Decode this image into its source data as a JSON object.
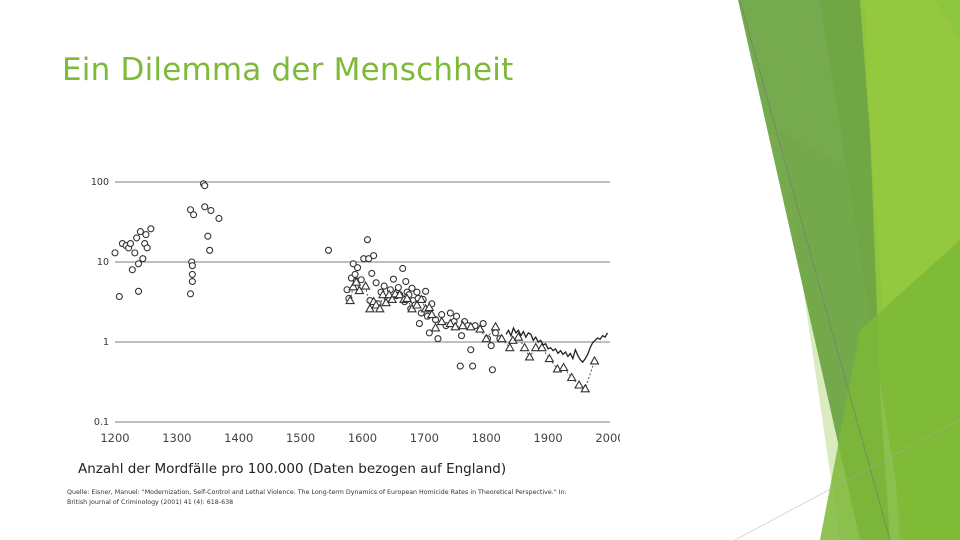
{
  "slide": {
    "title": "Ein Dilemma der Menschheit",
    "caption": "Anzahl der Mordfälle pro 100.000 (Daten bezogen auf England)",
    "source_line1": "Quelle: Eisner, Manuel: \"Modernization, Self-Control and Lethal Violence. The Long-term Dynamics of European Homicide Rates in Theoretical Perspective.\" In:",
    "source_line2": "British Journal of Criminology (2001) 41 (4): 618-638"
  },
  "colors": {
    "title": "#7dba3a",
    "gridline": "#999999",
    "marker": "#333333",
    "deco_dark": "#5c9a2c",
    "deco_mid": "#7bb43a",
    "deco_light": "#c9e3a4"
  },
  "chart_data": {
    "type": "scatter",
    "title": "",
    "xlabel": "",
    "ylabel": "",
    "yscale": "log",
    "xlim": [
      1200,
      2000
    ],
    "ylim": [
      0.1,
      100
    ],
    "x_ticks": [
      "1200",
      "1300",
      "1400",
      "1500",
      "1600",
      "1700",
      "1800",
      "1900",
      "2000"
    ],
    "y_ticks": [
      "100",
      "10",
      "1",
      "0.1"
    ],
    "grid": "horizontal",
    "series": [
      {
        "marker": "circle",
        "points": [
          [
            1200,
            13
          ],
          [
            1207,
            3.7
          ],
          [
            1212,
            17
          ],
          [
            1218,
            16
          ],
          [
            1222,
            15
          ],
          [
            1225,
            17
          ],
          [
            1228,
            8
          ],
          [
            1232,
            13
          ],
          [
            1235,
            20
          ],
          [
            1238,
            4.3
          ],
          [
            1238,
            9.5
          ],
          [
            1241,
            24
          ],
          [
            1245,
            11
          ],
          [
            1248,
            17
          ],
          [
            1250,
            22
          ],
          [
            1252,
            15
          ],
          [
            1258,
            26
          ],
          [
            1322,
            45
          ],
          [
            1322,
            4
          ],
          [
            1324,
            10
          ],
          [
            1325,
            7
          ],
          [
            1325,
            5.7
          ],
          [
            1325,
            9
          ],
          [
            1327,
            39
          ],
          [
            1343,
            95
          ],
          [
            1345,
            90
          ],
          [
            1345,
            49
          ],
          [
            1350,
            21
          ],
          [
            1353,
            14
          ],
          [
            1355,
            44
          ],
          [
            1368,
            35
          ],
          [
            1545,
            14
          ],
          [
            1575,
            4.5
          ],
          [
            1578,
            3.5
          ],
          [
            1582,
            6.3
          ],
          [
            1585,
            9.5
          ],
          [
            1588,
            7
          ],
          [
            1590,
            5.8
          ],
          [
            1592,
            8.5
          ],
          [
            1598,
            6
          ],
          [
            1602,
            11
          ],
          [
            1608,
            19
          ],
          [
            1610,
            11
          ],
          [
            1612,
            3.3
          ],
          [
            1615,
            7.2
          ],
          [
            1618,
            12
          ],
          [
            1622,
            5.5
          ],
          [
            1625,
            3
          ],
          [
            1630,
            4.2
          ],
          [
            1635,
            5
          ],
          [
            1640,
            3.5
          ],
          [
            1645,
            4.5
          ],
          [
            1650,
            6.1
          ],
          [
            1655,
            3.8
          ],
          [
            1658,
            4.8
          ],
          [
            1660,
            3.9
          ],
          [
            1665,
            8.3
          ],
          [
            1668,
            3.2
          ],
          [
            1670,
            5.7
          ],
          [
            1672,
            4.2
          ],
          [
            1675,
            3.9
          ],
          [
            1678,
            2.6
          ],
          [
            1680,
            4.7
          ],
          [
            1682,
            3.3
          ],
          [
            1685,
            2.9
          ],
          [
            1688,
            4.2
          ],
          [
            1690,
            3.5
          ],
          [
            1692,
            1.7
          ],
          [
            1695,
            2.3
          ],
          [
            1698,
            3.4
          ],
          [
            1702,
            4.3
          ],
          [
            1705,
            2.1
          ],
          [
            1708,
            1.3
          ],
          [
            1712,
            3
          ],
          [
            1718,
            1.9
          ],
          [
            1722,
            1.1
          ],
          [
            1728,
            2.2
          ],
          [
            1735,
            1.6
          ],
          [
            1742,
            2.3
          ],
          [
            1748,
            1.8
          ],
          [
            1752,
            2.1
          ],
          [
            1758,
            0.5
          ],
          [
            1760,
            1.2
          ],
          [
            1765,
            1.8
          ],
          [
            1770,
            1.6
          ],
          [
            1775,
            0.8
          ],
          [
            1778,
            0.5
          ],
          [
            1782,
            1.6
          ],
          [
            1795,
            1.7
          ],
          [
            1802,
            1.1
          ],
          [
            1808,
            0.9
          ],
          [
            1810,
            0.45
          ],
          [
            1815,
            1.3
          ],
          [
            1822,
            1.1
          ]
        ]
      },
      {
        "marker": "triangle",
        "dashed": true,
        "points": [
          [
            1580,
            3.3
          ],
          [
            1585,
            4.9
          ],
          [
            1590,
            5.6
          ],
          [
            1595,
            4.4
          ],
          [
            1605,
            5
          ],
          [
            1612,
            2.6
          ],
          [
            1618,
            3.2
          ],
          [
            1622,
            2.9
          ],
          [
            1628,
            2.6
          ],
          [
            1633,
            3.9
          ],
          [
            1638,
            3.1
          ],
          [
            1643,
            3.9
          ],
          [
            1648,
            3.4
          ],
          [
            1653,
            4
          ],
          [
            1660,
            3.9
          ],
          [
            1667,
            3.4
          ],
          [
            1672,
            3.5
          ],
          [
            1680,
            2.6
          ],
          [
            1688,
            2.9
          ],
          [
            1695,
            3.4
          ],
          [
            1702,
            2.6
          ],
          [
            1708,
            2.7
          ],
          [
            1712,
            2.2
          ],
          [
            1718,
            1.5
          ],
          [
            1728,
            1.8
          ],
          [
            1742,
            1.7
          ],
          [
            1750,
            1.55
          ],
          [
            1762,
            1.6
          ],
          [
            1775,
            1.55
          ],
          [
            1790,
            1.45
          ],
          [
            1800,
            1.1
          ],
          [
            1815,
            1.55
          ],
          [
            1825,
            1.1
          ],
          [
            1838,
            0.85
          ],
          [
            1843,
            1.05
          ],
          [
            1852,
            1.15
          ],
          [
            1862,
            0.85
          ],
          [
            1870,
            0.65
          ],
          [
            1880,
            0.85
          ],
          [
            1890,
            0.85
          ],
          [
            1902,
            0.62
          ],
          [
            1915,
            0.46
          ],
          [
            1925,
            0.48
          ],
          [
            1938,
            0.36
          ],
          [
            1950,
            0.29
          ],
          [
            1960,
            0.26
          ],
          [
            1975,
            0.58
          ]
        ]
      },
      {
        "type": "line",
        "points": [
          [
            1832,
            1.25
          ],
          [
            1836,
            1.4
          ],
          [
            1840,
            1.2
          ],
          [
            1844,
            1.5
          ],
          [
            1848,
            1.3
          ],
          [
            1852,
            1.4
          ],
          [
            1856,
            1.2
          ],
          [
            1860,
            1.35
          ],
          [
            1864,
            1.15
          ],
          [
            1868,
            1.3
          ],
          [
            1872,
            1.25
          ],
          [
            1876,
            1.05
          ],
          [
            1880,
            1.15
          ],
          [
            1884,
            1.0
          ],
          [
            1888,
            1.05
          ],
          [
            1892,
            0.92
          ],
          [
            1896,
            0.95
          ],
          [
            1900,
            0.82
          ],
          [
            1904,
            0.85
          ],
          [
            1908,
            0.78
          ],
          [
            1912,
            0.82
          ],
          [
            1916,
            0.72
          ],
          [
            1920,
            0.78
          ],
          [
            1924,
            0.7
          ],
          [
            1928,
            0.75
          ],
          [
            1932,
            0.66
          ],
          [
            1936,
            0.72
          ],
          [
            1940,
            0.62
          ],
          [
            1944,
            0.8
          ],
          [
            1948,
            0.68
          ],
          [
            1952,
            0.6
          ],
          [
            1956,
            0.56
          ],
          [
            1960,
            0.62
          ],
          [
            1964,
            0.7
          ],
          [
            1968,
            0.85
          ],
          [
            1972,
            0.98
          ],
          [
            1976,
            1.05
          ],
          [
            1980,
            1.12
          ],
          [
            1984,
            1.08
          ],
          [
            1988,
            1.2
          ],
          [
            1992,
            1.15
          ],
          [
            1996,
            1.3
          ]
        ]
      }
    ]
  }
}
